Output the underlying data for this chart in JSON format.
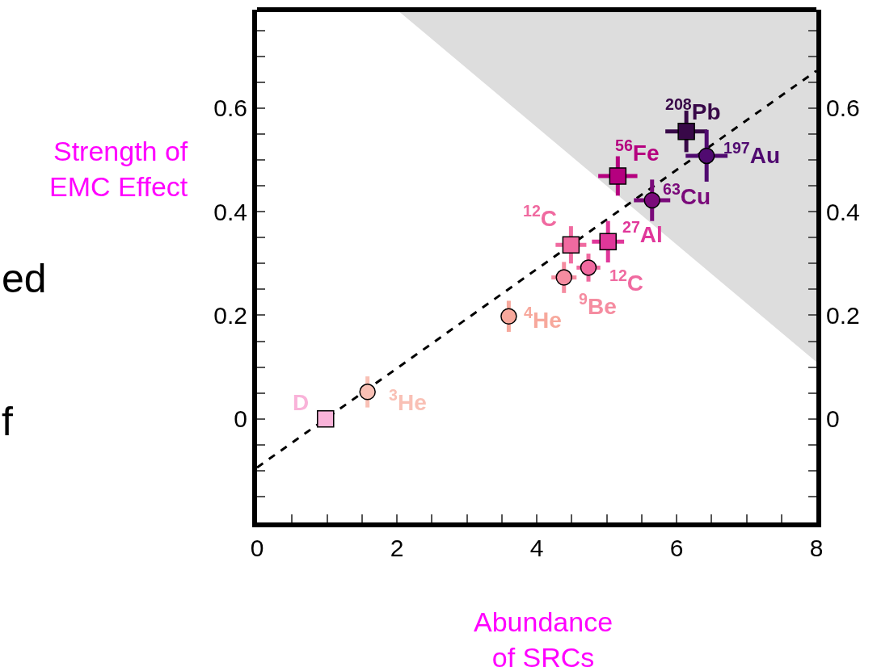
{
  "chart_data": {
    "type": "scatter",
    "xlabel": "Abundance\nof SRCs",
    "ylabel": "Strength of\nEMC Effect",
    "xlim": [
      0,
      8
    ],
    "ylim": [
      -0.2,
      0.79
    ],
    "y2lim": [
      -0.2,
      0.79
    ],
    "xticks": [
      0,
      {
        "value": 0.5,
        "label": null
      },
      {
        "value": 1,
        "label": null
      },
      {
        "value": 1.5,
        "label": null
      },
      2,
      {
        "value": 2.5,
        "label": null
      },
      {
        "value": 3,
        "label": null
      },
      {
        "value": 3.5,
        "label": null
      },
      4,
      {
        "value": 4.5,
        "label": null
      },
      {
        "value": 5,
        "label": null
      },
      {
        "value": 5.5,
        "label": null
      },
      6,
      {
        "value": 6.5,
        "label": null
      },
      {
        "value": 7,
        "label": null
      },
      {
        "value": 7.5,
        "label": null
      },
      8
    ],
    "yticks": [
      {
        "value": -0.15,
        "label": null
      },
      {
        "value": -0.1,
        "label": null
      },
      {
        "value": -0.05,
        "label": null
      },
      0,
      {
        "value": 0.05,
        "label": null
      },
      {
        "value": 0.1,
        "label": null
      },
      {
        "value": 0.15,
        "label": null
      },
      0.2,
      {
        "value": 0.25,
        "label": null
      },
      {
        "value": 0.3,
        "label": null
      },
      {
        "value": 0.35,
        "label": null
      },
      0.4,
      {
        "value": 0.45,
        "label": null
      },
      {
        "value": 0.5,
        "label": null
      },
      {
        "value": 0.55,
        "label": null
      },
      0.6,
      {
        "value": 0.65,
        "label": null
      },
      {
        "value": 0.7,
        "label": null
      },
      {
        "value": 0.75,
        "label": null
      }
    ],
    "y2ticks": [
      {
        "value": -0.15,
        "label": null
      },
      {
        "value": -0.1,
        "label": null
      },
      {
        "value": -0.05,
        "label": null
      },
      0,
      {
        "value": 0.05,
        "label": null
      },
      {
        "value": 0.1,
        "label": null
      },
      {
        "value": 0.15,
        "label": null
      },
      0.2,
      {
        "value": 0.25,
        "label": null
      },
      {
        "value": 0.3,
        "label": null
      },
      {
        "value": 0.35,
        "label": null
      },
      0.4,
      {
        "value": 0.45,
        "label": null
      },
      {
        "value": 0.5,
        "label": null
      },
      {
        "value": 0.55,
        "label": null
      },
      0.6,
      {
        "value": 0.65,
        "label": null
      },
      {
        "value": 0.7,
        "label": null
      },
      {
        "value": 0.75,
        "label": null
      }
    ],
    "series": [
      {
        "type": "area",
        "color": "#dddddd",
        "x": [
          2,
          8
        ],
        "values": [
          0.79,
          0.11
        ]
      },
      {
        "type": "line",
        "color": "#000000",
        "line_style": "dashed",
        "marker": "none",
        "x": [
          0,
          8
        ],
        "values": [
          -0.094,
          0.672
        ]
      },
      {
        "color": "#f9b3d9",
        "marker": "square",
        "x": [
          0.98
        ],
        "values": [
          0
        ]
      },
      {
        "color": "#f9c0b5",
        "marker": "circle",
        "x": [
          1.58
        ],
        "values": [
          0.052
        ],
        "errors": [
          0.03
        ]
      },
      {
        "color": "#f7a89c",
        "marker": "circle",
        "x": [
          3.6
        ],
        "values": [
          0.198
        ],
        "errors": [
          0.03
        ]
      },
      {
        "color": "#f58ca0",
        "marker": "circle",
        "x": [
          4.39
        ],
        "values": [
          0.273
        ],
        "errors": [
          0.03
        ],
        "xerrors": [
          0.18
        ]
      },
      {
        "color": "#f06aa0",
        "marker": "circle",
        "x": [
          4.74
        ],
        "values": [
          0.292
        ],
        "errors": [
          0.027
        ],
        "xerrors": [
          0.17
        ]
      },
      {
        "color": "#f06aa0",
        "marker": "square",
        "x": [
          4.49
        ],
        "values": [
          0.336
        ],
        "errors": [
          0.036
        ],
        "xerrors": [
          0.22
        ]
      },
      {
        "color": "#e0379a",
        "marker": "square",
        "x": [
          5.02
        ],
        "values": [
          0.342
        ],
        "errors": [
          0.04
        ],
        "xerrors": [
          0.23
        ]
      },
      {
        "color": "#b5007f",
        "marker": "square",
        "x": [
          5.16
        ],
        "values": [
          0.469
        ],
        "errors": [
          0.038
        ],
        "xerrors": [
          0.28
        ]
      },
      {
        "color": "#7a0a7a",
        "marker": "circle",
        "x": [
          5.65
        ],
        "values": [
          0.422
        ],
        "errors": [
          0.04
        ],
        "xerrors": [
          0.26
        ]
      },
      {
        "color": "#380848",
        "marker": "square",
        "x": [
          6.14
        ],
        "values": [
          0.555
        ],
        "errors": [
          0.04
        ],
        "xerrors": [
          0.3
        ]
      },
      {
        "color": "#500a70",
        "marker": "circle",
        "x": [
          6.43
        ],
        "values": [
          0.508
        ],
        "errors": [
          0.05
        ],
        "xerrors": [
          0.3
        ]
      }
    ],
    "annotations": [
      {
        "text": "D",
        "x": 0.98,
        "y": 0
      },
      {
        "text": "$^{3}$He",
        "x": 1.58,
        "y": 0.052
      },
      {
        "text": "$^{4}$He",
        "x": 3.6,
        "y": 0.198
      },
      {
        "text": "$^{9}$Be",
        "x": 4.39,
        "y": 0.273
      },
      {
        "text": "$^{12}$C",
        "x": 4.74,
        "y": 0.292
      },
      {
        "text": "$^{12}$C",
        "x": 4.49,
        "y": 0.336
      },
      {
        "text": "$^{27}$Al",
        "x": 5.02,
        "y": 0.342
      },
      {
        "text": "$^{56}$Fe",
        "x": 5.16,
        "y": 0.469
      },
      {
        "text": "$^{63}$Cu",
        "x": 5.65,
        "y": 0.422
      },
      {
        "text": "$^{208}$Pb",
        "x": 6.14,
        "y": 0.555
      },
      {
        "text": "$^{197}$Au",
        "x": 6.43,
        "y": 0.508
      },
      "ed",
      "f"
    ]
  }
}
